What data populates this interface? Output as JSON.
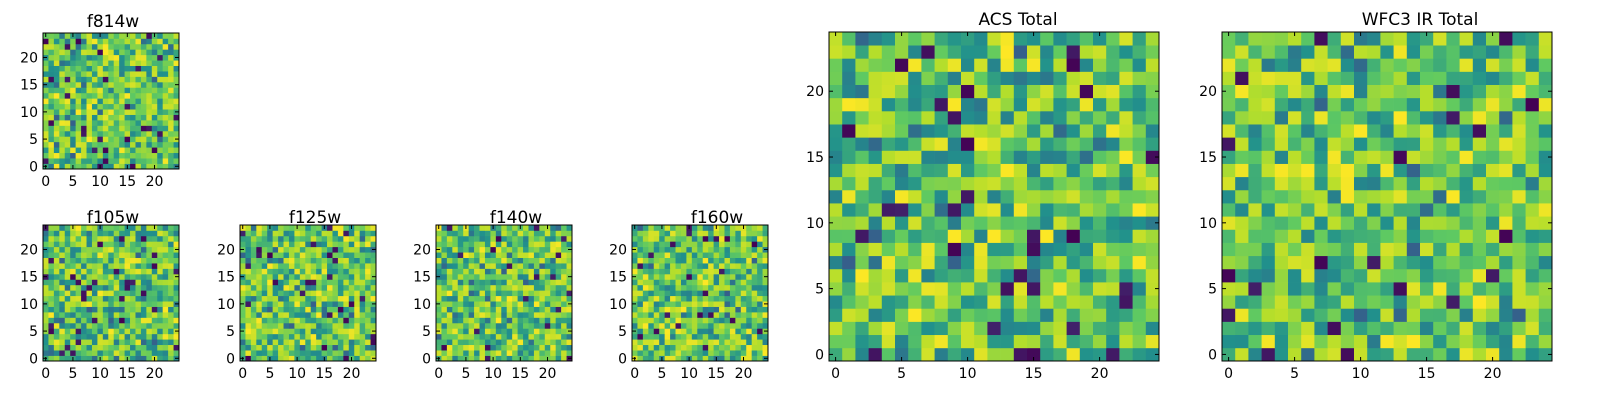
{
  "figure": {
    "colormap": [
      "#440154",
      "#3b528b",
      "#21918c",
      "#5ec962",
      "#b5de2b",
      "#fde725"
    ]
  },
  "chart_data": [
    {
      "type": "heatmap",
      "title": "f814w",
      "grid_size": 25,
      "x_ticks": [
        0,
        5,
        10,
        15,
        20
      ],
      "y_ticks": [
        0,
        5,
        10,
        15,
        20
      ],
      "xlim": [
        -0.5,
        24.5
      ],
      "ylim": [
        -0.5,
        24.5
      ],
      "note": "",
      "pattern_seed": 11,
      "values": []
    },
    {
      "type": "heatmap",
      "title": "f105w",
      "grid_size": 25,
      "x_ticks": [
        0,
        5,
        10,
        15,
        20
      ],
      "y_ticks": [
        0,
        5,
        10,
        15,
        20
      ],
      "xlim": [
        -0.5,
        24.5
      ],
      "ylim": [
        -0.5,
        24.5
      ],
      "pattern_seed": 23,
      "values": []
    },
    {
      "type": "heatmap",
      "title": "f125w",
      "grid_size": 25,
      "x_ticks": [
        0,
        5,
        10,
        15,
        20
      ],
      "y_ticks": [
        0,
        5,
        10,
        15,
        20
      ],
      "xlim": [
        -0.5,
        24.5
      ],
      "ylim": [
        -0.5,
        24.5
      ],
      "pattern_seed": 37,
      "values": []
    },
    {
      "type": "heatmap",
      "title": "f140w",
      "grid_size": 25,
      "x_ticks": [
        0,
        5,
        10,
        15,
        20
      ],
      "y_ticks": [
        0,
        5,
        10,
        15,
        20
      ],
      "xlim": [
        -0.5,
        24.5
      ],
      "ylim": [
        -0.5,
        24.5
      ],
      "pattern_seed": 41,
      "values": []
    },
    {
      "type": "heatmap",
      "title": "f160w",
      "grid_size": 25,
      "x_ticks": [
        0,
        5,
        10,
        15,
        20
      ],
      "y_ticks": [
        0,
        5,
        10,
        15,
        20
      ],
      "xlim": [
        -0.5,
        24.5
      ],
      "ylim": [
        -0.5,
        24.5
      ],
      "pattern_seed": 53,
      "values": []
    },
    {
      "type": "heatmap",
      "title": "ACS Total",
      "grid_size": 25,
      "x_ticks": [
        0,
        5,
        10,
        15,
        20
      ],
      "y_ticks": [
        0,
        5,
        10,
        15,
        20
      ],
      "xlim": [
        -0.5,
        24.5
      ],
      "ylim": [
        -0.5,
        24.5
      ],
      "pattern_seed": 67,
      "values": []
    },
    {
      "type": "heatmap",
      "title": "WFC3 IR Total",
      "grid_size": 25,
      "x_ticks": [
        0,
        5,
        10,
        15,
        20
      ],
      "y_ticks": [
        0,
        5,
        10,
        15,
        20
      ],
      "xlim": [
        -0.5,
        24.5
      ],
      "ylim": [
        -0.5,
        24.5
      ],
      "pattern_seed": 79,
      "values": []
    }
  ]
}
